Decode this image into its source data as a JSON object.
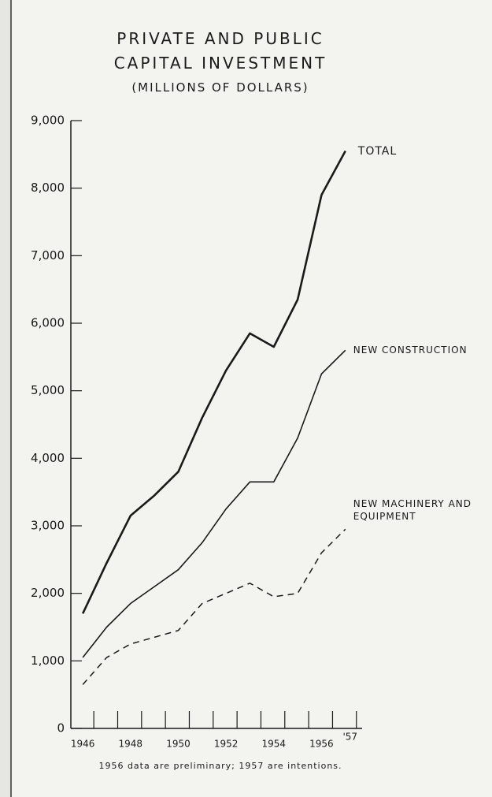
{
  "chart_data": {
    "type": "line",
    "title": "PRIVATE AND PUBLIC CAPITAL INVESTMENT",
    "subtitle": "(MILLIONS OF DOLLARS)",
    "note": "1956 data are preliminary; 1957 are intentions.",
    "x": [
      1946,
      1947,
      1948,
      1949,
      1950,
      1951,
      1952,
      1953,
      1954,
      1955,
      1956,
      1957
    ],
    "series": [
      {
        "name": "TOTAL",
        "color": "#1a1a1a",
        "style": "solid",
        "width": 2.6,
        "values": [
          1700,
          2450,
          3150,
          3450,
          3800,
          4600,
          5300,
          5850,
          5650,
          6350,
          7900,
          8550
        ]
      },
      {
        "name": "NEW CONSTRUCTION",
        "color": "#1a1a1a",
        "style": "solid",
        "width": 1.6,
        "values": [
          1050,
          1500,
          1850,
          2100,
          2350,
          2750,
          3250,
          3650,
          3650,
          4300,
          5250,
          5600
        ]
      },
      {
        "name": "NEW MACHINERY AND EQUIPMENT",
        "color": "#1a1a1a",
        "style": "dashed",
        "width": 1.5,
        "values": [
          650,
          1050,
          1250,
          1350,
          1450,
          1850,
          2000,
          2150,
          1950,
          2000,
          2600,
          2950
        ]
      }
    ],
    "xlim": [
      1945.5,
      1957.7
    ],
    "xticks": [
      1946,
      1948,
      1950,
      1952,
      1954,
      1956,
      {
        "value": 1957,
        "label": "'57"
      }
    ],
    "ylim": [
      0,
      9000
    ],
    "yticks": [
      0,
      {
        "value": 1000,
        "label": "1,000"
      },
      {
        "value": 2000,
        "label": "2,000"
      },
      {
        "value": 3000,
        "label": "3,000"
      },
      {
        "value": 4000,
        "label": "4,000"
      },
      {
        "value": 5000,
        "label": "5,000"
      },
      {
        "value": 6000,
        "label": "6,000"
      },
      {
        "value": 7000,
        "label": "7,000"
      },
      {
        "value": 8000,
        "label": "8,000"
      },
      {
        "value": 9000,
        "label": "9,000"
      }
    ],
    "grid": false
  }
}
